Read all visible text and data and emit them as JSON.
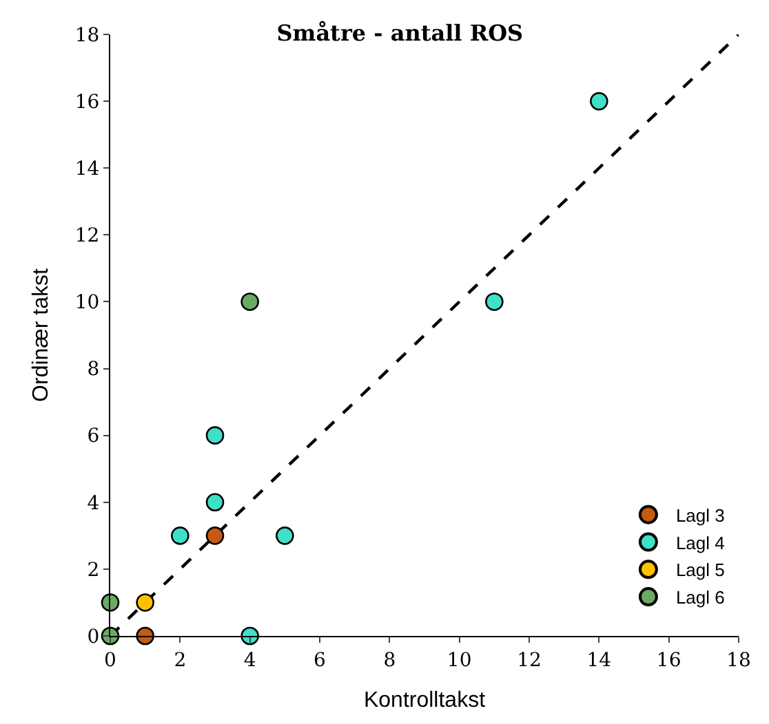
{
  "chart_data": {
    "type": "scatter",
    "title": "Småtre - antall ROS",
    "xlabel": "Kontrolltakst",
    "ylabel": "Ordinær takst",
    "xlim": [
      0,
      18
    ],
    "xticks": [
      0,
      2,
      4,
      6,
      8,
      10,
      12,
      14,
      16,
      18
    ],
    "ylim": [
      0,
      18
    ],
    "yticks": [
      0,
      2,
      4,
      6,
      8,
      10,
      12,
      14,
      16,
      18
    ],
    "legend": "bottom right",
    "marker": "circle",
    "series": [
      {
        "type": "line",
        "x": [
          0,
          18
        ],
        "values": [
          0,
          18
        ],
        "color": "#000000",
        "line_style": "dashed",
        "marker": "none"
      },
      {
        "name": "Lagl 3",
        "color": "#c55a11",
        "x": [
          3,
          1
        ],
        "values": [
          3,
          0
        ]
      },
      {
        "name": "Lagl 4",
        "color": "#3ee0c8",
        "x": [
          14,
          11,
          3,
          3,
          2,
          5,
          4
        ],
        "values": [
          16,
          10,
          6,
          4,
          3,
          3,
          0
        ]
      },
      {
        "name": "Lagl 5",
        "color": "#ffc000",
        "x": [
          1
        ],
        "values": [
          1
        ]
      },
      {
        "name": "Lagl 6",
        "color": "#6aaa64",
        "x": [
          4,
          0,
          0
        ],
        "values": [
          10,
          1,
          0
        ]
      }
    ]
  }
}
